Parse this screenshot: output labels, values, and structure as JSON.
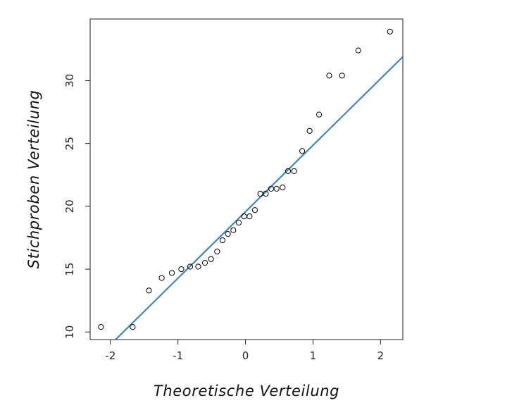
{
  "chart_data": {
    "type": "scatter",
    "title": "",
    "xlabel": "Theoretische Verteilung",
    "ylabel": "Stichproben Verteilung",
    "x_ticks": [
      -2,
      -1,
      0,
      1,
      2
    ],
    "y_ticks": [
      10,
      15,
      20,
      25,
      30
    ],
    "xlim": [
      -2.3,
      2.33
    ],
    "ylim": [
      9.4,
      34.9
    ],
    "grid": false,
    "points": [
      {
        "x": -2.14,
        "y": 10.4
      },
      {
        "x": -1.67,
        "y": 10.4
      },
      {
        "x": -1.43,
        "y": 13.3
      },
      {
        "x": -1.24,
        "y": 14.3
      },
      {
        "x": -1.09,
        "y": 14.7
      },
      {
        "x": -0.95,
        "y": 15.0
      },
      {
        "x": -0.82,
        "y": 15.2
      },
      {
        "x": -0.7,
        "y": 15.2
      },
      {
        "x": -0.6,
        "y": 15.5
      },
      {
        "x": -0.51,
        "y": 15.8
      },
      {
        "x": -0.42,
        "y": 16.4
      },
      {
        "x": -0.34,
        "y": 17.3
      },
      {
        "x": -0.26,
        "y": 17.8
      },
      {
        "x": -0.18,
        "y": 18.1
      },
      {
        "x": -0.1,
        "y": 18.7
      },
      {
        "x": -0.02,
        "y": 19.2
      },
      {
        "x": 0.06,
        "y": 19.2
      },
      {
        "x": 0.14,
        "y": 19.7
      },
      {
        "x": 0.22,
        "y": 21.0
      },
      {
        "x": 0.3,
        "y": 21.0
      },
      {
        "x": 0.38,
        "y": 21.4
      },
      {
        "x": 0.46,
        "y": 21.4
      },
      {
        "x": 0.55,
        "y": 21.5
      },
      {
        "x": 0.63,
        "y": 22.8
      },
      {
        "x": 0.72,
        "y": 22.8
      },
      {
        "x": 0.84,
        "y": 24.4
      },
      {
        "x": 0.95,
        "y": 26.0
      },
      {
        "x": 1.09,
        "y": 27.3
      },
      {
        "x": 1.24,
        "y": 30.4
      },
      {
        "x": 1.43,
        "y": 30.4
      },
      {
        "x": 1.67,
        "y": 32.4
      },
      {
        "x": 2.14,
        "y": 33.9
      }
    ],
    "reference_line": {
      "intercept": 19.57,
      "slope": 5.29,
      "color": "#4682b4"
    },
    "point_color": "#000000"
  }
}
